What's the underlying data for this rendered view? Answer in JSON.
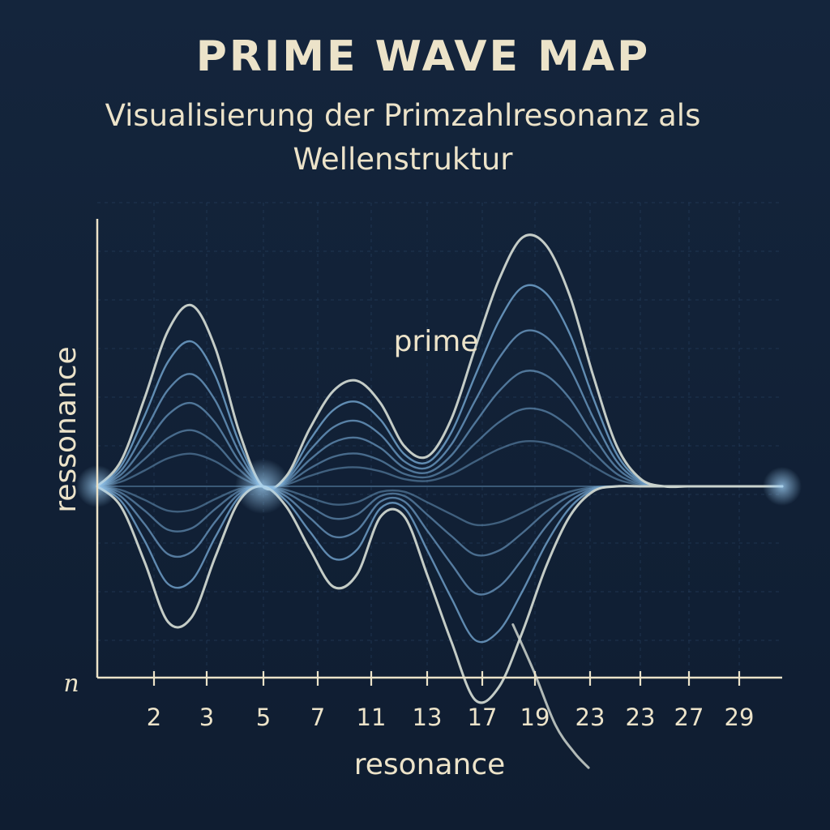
{
  "colors": {
    "background": "#122238",
    "text": "#ece3c9",
    "axis": "#ece3c9",
    "grid": "#2a4566",
    "wave_light": "#cfd6cf",
    "wave_blue": "#6f9fc8",
    "glow": "#8fc3ef"
  },
  "chart_data": {
    "type": "line",
    "title": "PRIME WAVE MAP",
    "subtitle": "Visualisierung der Primzahlresonanz als Wellenstruktur",
    "xlabel": "resonance",
    "ylabel": "ressonance",
    "origin_label": "n",
    "annotation": "prime",
    "x_ticks": [
      "2",
      "3",
      "5",
      "7",
      "11",
      "13",
      "17",
      "19",
      "23",
      "23",
      "27",
      "29"
    ],
    "ylim": [
      -1,
      1
    ],
    "grid": true,
    "legend": "none",
    "x_range": [
      1,
      30
    ],
    "upper_envelope": {
      "x": [
        1,
        2,
        3,
        4,
        5,
        6,
        7,
        8,
        9,
        10,
        11,
        12,
        13,
        14,
        15,
        16,
        17,
        18,
        19,
        20,
        21,
        22,
        23,
        24,
        25,
        26,
        27,
        28,
        29,
        30
      ],
      "y": [
        0.0,
        0.1,
        0.35,
        0.62,
        0.72,
        0.55,
        0.22,
        0.0,
        0.04,
        0.23,
        0.38,
        0.42,
        0.33,
        0.16,
        0.12,
        0.27,
        0.55,
        0.82,
        0.99,
        0.96,
        0.76,
        0.44,
        0.16,
        0.03,
        0.0,
        0.0,
        0.0,
        0.0,
        0.0,
        0.0
      ]
    },
    "lower_envelope": {
      "x": [
        1,
        2,
        3,
        4,
        5,
        6,
        7,
        8,
        9,
        10,
        11,
        12,
        13,
        14,
        15,
        16,
        17,
        18,
        19,
        20,
        21,
        22,
        23,
        24,
        25,
        26,
        27,
        28,
        29,
        30
      ],
      "y": [
        0.0,
        -0.08,
        -0.3,
        -0.54,
        -0.52,
        -0.28,
        -0.06,
        0.0,
        -0.08,
        -0.25,
        -0.4,
        -0.35,
        -0.12,
        -0.12,
        -0.36,
        -0.62,
        -0.85,
        -0.8,
        -0.58,
        -0.32,
        -0.12,
        -0.02,
        0.0,
        0.0,
        0.0,
        0.0,
        0.0,
        0.0,
        0.0,
        0.0
      ]
    },
    "upper_levels": [
      1.0,
      0.8,
      0.62,
      0.46,
      0.31,
      0.18
    ],
    "lower_levels": [
      1.0,
      0.72,
      0.5,
      0.32,
      0.18
    ]
  }
}
